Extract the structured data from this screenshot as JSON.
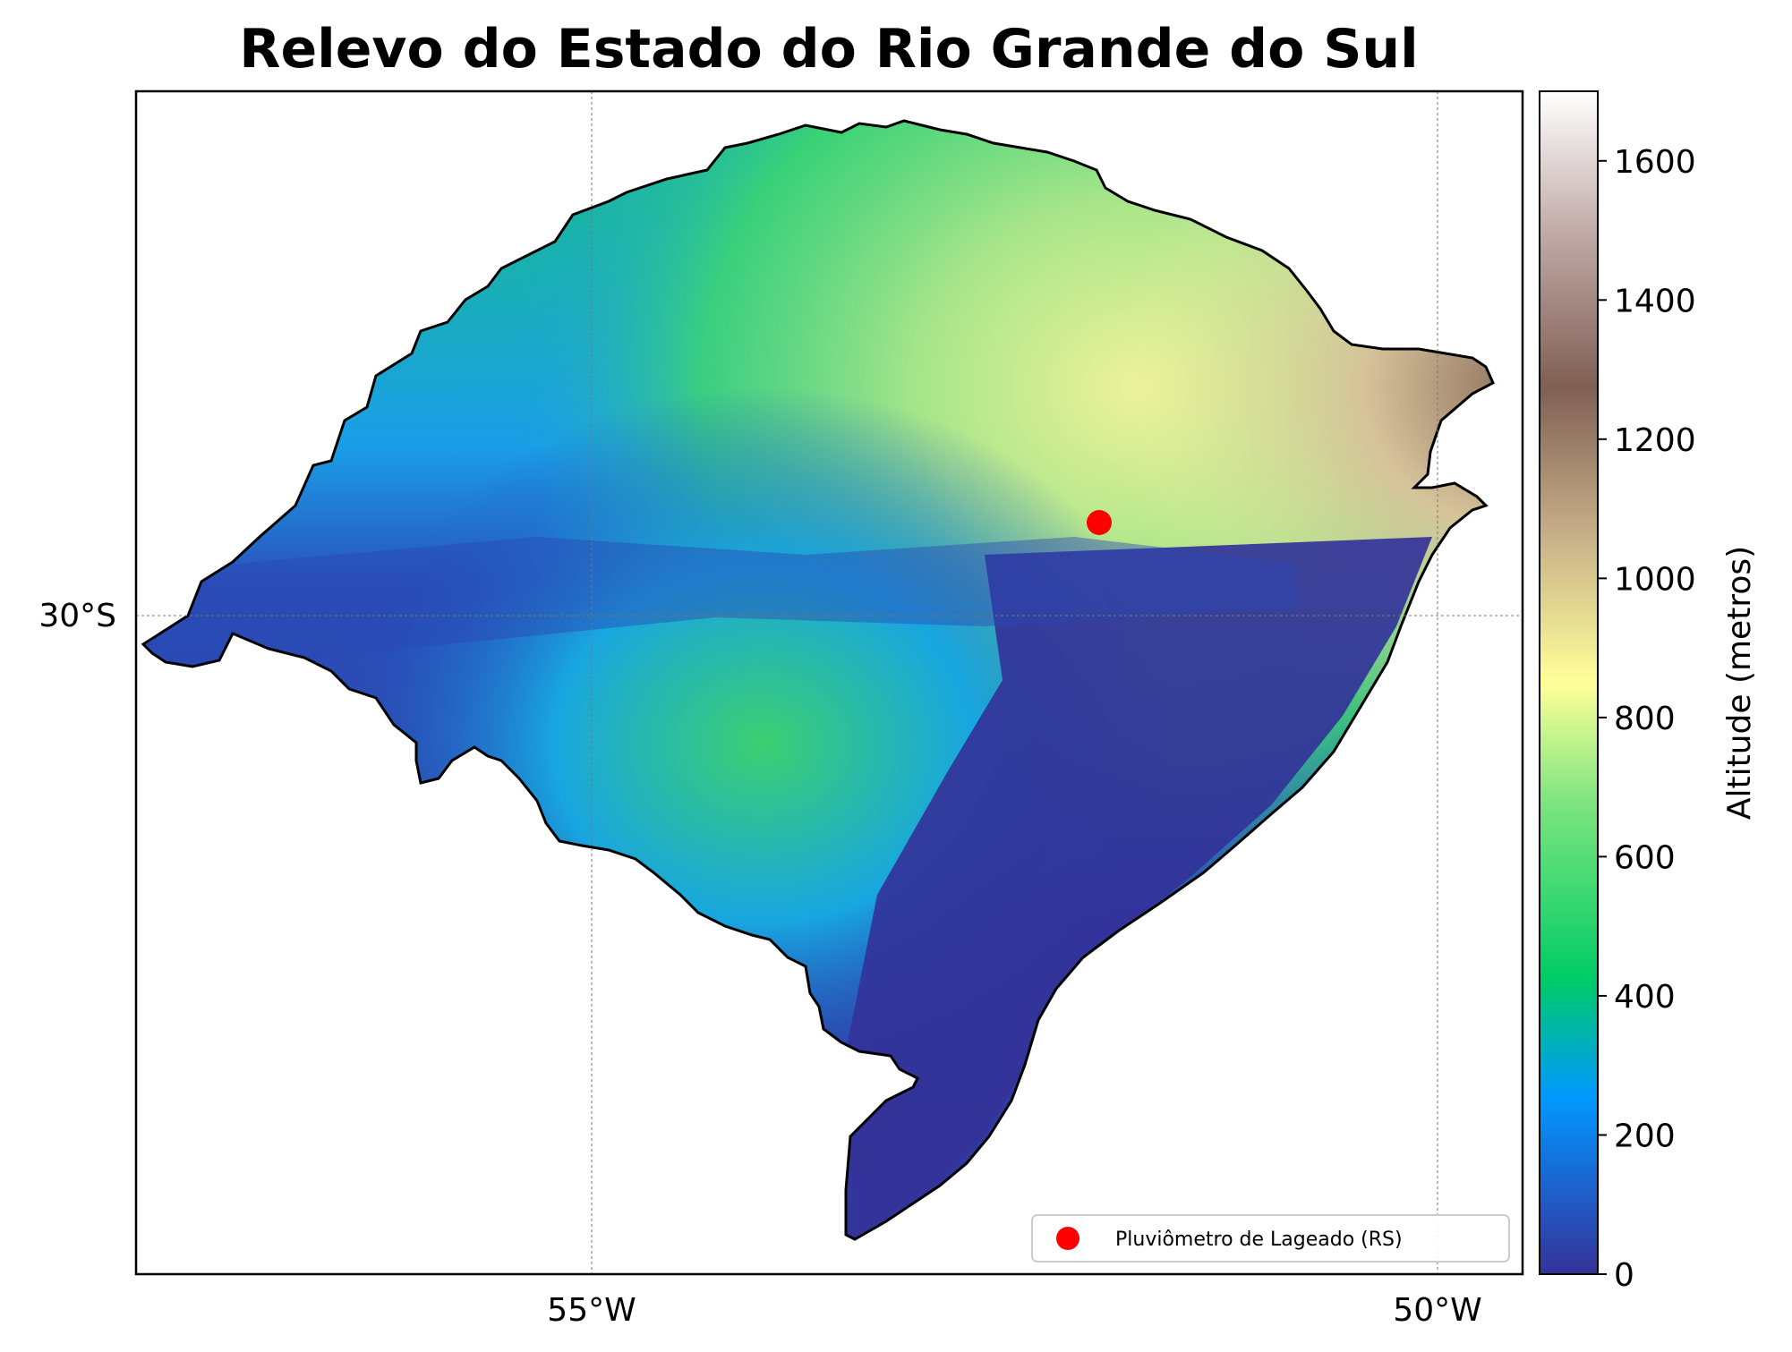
{
  "map": {
    "title": "Relevo do Estado do Rio Grande do Sul",
    "lon_ticks": [
      "55°W",
      "50°W"
    ],
    "lat_ticks": [
      "30°S"
    ]
  },
  "colorbar": {
    "label": "Altitude (metros)",
    "colormap": "terrain",
    "range": [
      0,
      1700
    ],
    "ticks": [
      "0",
      "200",
      "400",
      "600",
      "800",
      "1000",
      "1200",
      "1400",
      "1600"
    ]
  },
  "legend": {
    "label": "Pluviômetro de Lageado (RS)",
    "marker_color": "#ff0000"
  },
  "colors": {
    "outline": "#000000",
    "marker": "#ff0000",
    "gridline": "#777777"
  }
}
